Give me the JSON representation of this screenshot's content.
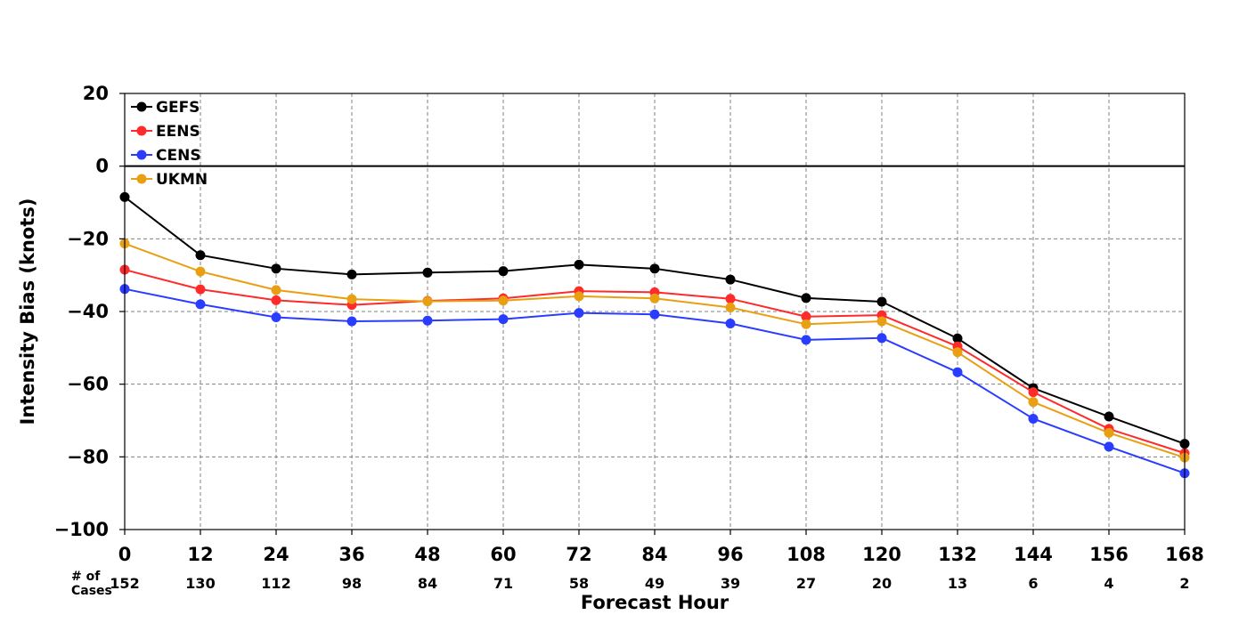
{
  "chart_data": {
    "type": "line",
    "title": "",
    "xlabel": "Forecast Hour",
    "ylabel": "Intensity Bias (knots)",
    "x": [
      0,
      12,
      24,
      36,
      48,
      60,
      72,
      84,
      96,
      108,
      120,
      132,
      144,
      156,
      168
    ],
    "xlim": [
      0,
      168
    ],
    "ylim": [
      -100,
      20
    ],
    "yticks": [
      20,
      0,
      -20,
      -40,
      -60,
      -80,
      -100
    ],
    "ytick_labels": [
      "20",
      "0",
      "−20",
      "−40",
      "−60",
      "−80",
      "−100"
    ],
    "grid": true,
    "zero_line": true,
    "legend_position": "top-left",
    "cases_label": "# of\nCases",
    "cases": [
      152,
      130,
      112,
      98,
      84,
      71,
      58,
      49,
      39,
      27,
      20,
      13,
      6,
      4,
      2
    ],
    "series": [
      {
        "name": "GEFS",
        "color": "#000000",
        "values": [
          -8.5,
          -24.5,
          -28.2,
          -29.8,
          -29.3,
          -28.9,
          -27.1,
          -28.2,
          -31.2,
          -36.3,
          -37.3,
          -47.4,
          -61.1,
          -68.9,
          -76.4
        ]
      },
      {
        "name": "EENS",
        "color": "#ff2a2a",
        "values": [
          -28.5,
          -33.9,
          -36.9,
          -38.2,
          -37.1,
          -36.4,
          -34.4,
          -34.7,
          -36.5,
          -41.4,
          -41.0,
          -49.6,
          -62.2,
          -72.3,
          -79.0
        ]
      },
      {
        "name": "CENS",
        "color": "#2a3cff",
        "values": [
          -33.8,
          -38.0,
          -41.6,
          -42.7,
          -42.5,
          -42.1,
          -40.4,
          -40.8,
          -43.3,
          -47.8,
          -47.3,
          -56.7,
          -69.5,
          -77.2,
          -84.5
        ]
      },
      {
        "name": "UKMN",
        "color": "#e8a012",
        "values": [
          -21.3,
          -29.0,
          -34.1,
          -36.6,
          -37.2,
          -37.0,
          -35.8,
          -36.4,
          -38.9,
          -43.5,
          -42.7,
          -51.2,
          -64.9,
          -73.4,
          -80.2
        ]
      }
    ]
  }
}
